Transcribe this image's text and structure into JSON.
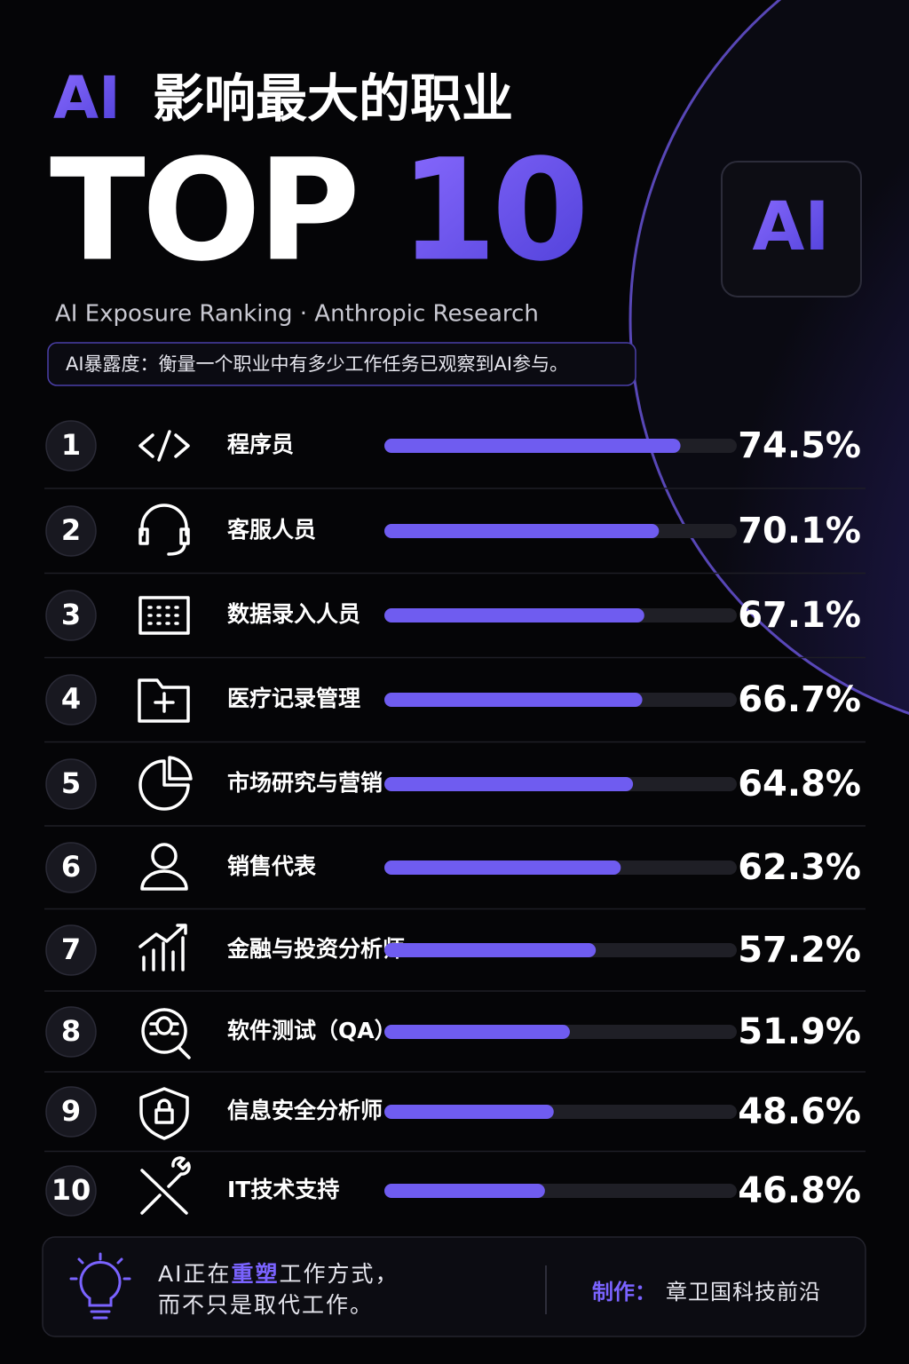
{
  "header": {
    "title_ai": "AI",
    "title": "影响最大的职业",
    "top": "TOP",
    "top_num": "10",
    "subtitle": "AI Exposure Ranking · Anthropic Research",
    "note": "AI暴露度：衡量一个职业中有多少工作任务已观察到AI参与。",
    "logo": "AI"
  },
  "chart_data": {
    "type": "bar",
    "orientation": "horizontal",
    "color": "#6f5cf0",
    "track_color": "#1f1f26",
    "ranks": [
      1,
      2,
      3,
      4,
      5,
      6,
      7,
      8,
      9,
      10
    ],
    "categories": [
      "程序员",
      "客服人员",
      "数据录入人员",
      "医疗记录管理",
      "市场研究与营销",
      "销售代表",
      "金融与投资分析师",
      "软件测试（QA）",
      "信息安全分析师",
      "IT技术支持"
    ],
    "values": [
      74.5,
      70.1,
      67.1,
      66.7,
      64.8,
      62.3,
      57.2,
      51.9,
      48.6,
      46.8
    ],
    "value_labels": [
      "74.5%",
      "70.1%",
      "67.1%",
      "66.7%",
      "64.8%",
      "62.3%",
      "57.2%",
      "51.9%",
      "48.6%",
      "46.8%"
    ],
    "xlim": [
      14,
      86
    ]
  },
  "footer": {
    "line1_a": "AI正在",
    "line1_b": "重塑",
    "line1_c": "工作方式，",
    "line2": "而不只是取代工作。",
    "credit_label": "制作：",
    "credit": "章卫国科技前沿"
  }
}
